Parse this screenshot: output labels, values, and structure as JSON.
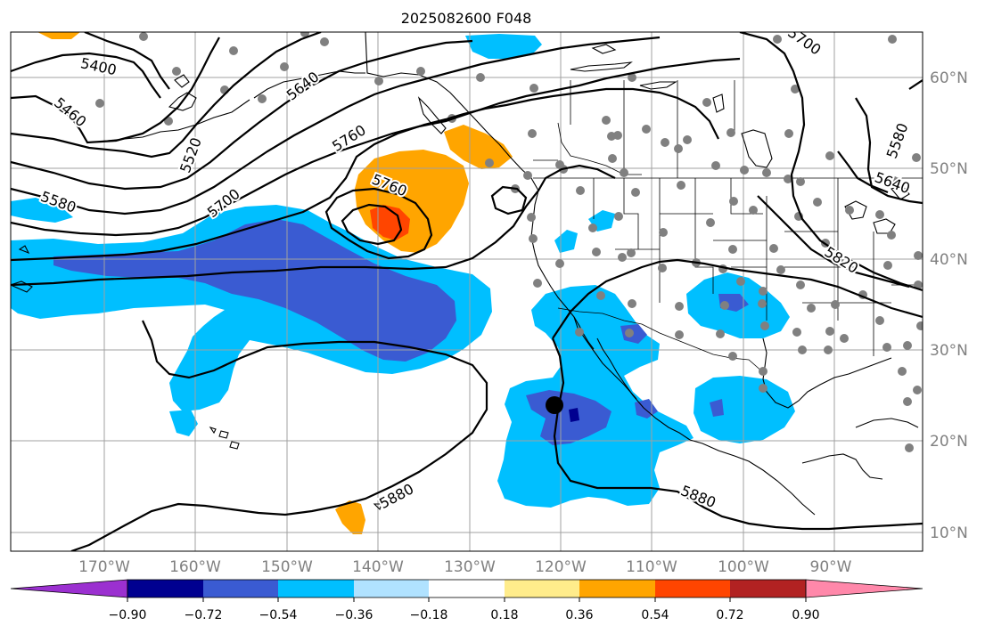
{
  "title": "2025082600 F048",
  "lat_labels": [
    "60°N",
    "50°N",
    "40°N",
    "30°N",
    "20°N",
    "10°N"
  ],
  "lon_labels": [
    "170°W",
    "160°W",
    "150°W",
    "140°W",
    "130°W",
    "120°W",
    "110°W",
    "100°W",
    "90°W"
  ],
  "colorbar": {
    "ticks": [
      "−0.90",
      "−0.72",
      "−0.54",
      "−0.36",
      "−0.18",
      "0.18",
      "0.36",
      "0.54",
      "0.72",
      "0.90"
    ],
    "colors": [
      "#9b30d0",
      "#000090",
      "#3a5bd2",
      "#00bfff",
      "#b0e2ff",
      "#ffffff",
      "#ffec8b",
      "#ffa500",
      "#ff4500",
      "#b22222",
      "#ff88aa"
    ]
  },
  "contour_labels": {
    "c5400": "5400",
    "c5460": "5460",
    "c5520": "5520",
    "c5580_w": "5580",
    "c5640_n": "5640",
    "c5700": "5700",
    "c5760_n": "5760",
    "c5760_low": "5760",
    "c5700_ne": "5700",
    "c5580_e": "5580",
    "c5640_e": "5640",
    "c5820": "5820",
    "c5880_w": "5880",
    "c5880_s": "5880"
  },
  "colors": {
    "coast": "#000000",
    "grid": "#a0a0a0",
    "station": "#808080",
    "ocean": "#ffffff"
  }
}
